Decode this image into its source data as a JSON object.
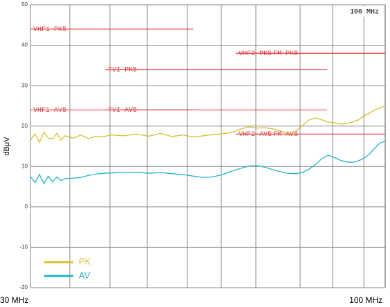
{
  "chart_data": {
    "type": "line",
    "y_label": "dBμV",
    "annotation": "100 MHz",
    "xscale": "log",
    "xlim": [
      30,
      108
    ],
    "xticks": [
      {
        "value": 30,
        "label": "30 MHz"
      },
      {
        "value": 100,
        "label": "100 MHz"
      }
    ],
    "ylim": [
      -20,
      50
    ],
    "yticks": [
      50,
      40,
      30,
      20,
      10,
      0,
      -10,
      -20
    ],
    "grid": true,
    "legend": "lower left",
    "x": [
      30,
      30.5,
      31,
      31.5,
      32,
      32.5,
      33,
      33.5,
      34,
      35,
      36,
      37,
      38,
      39,
      40,
      42,
      44,
      46,
      48,
      50,
      52,
      54,
      56,
      58,
      60,
      62,
      64,
      66,
      68,
      70,
      72,
      74,
      76,
      78,
      80,
      82,
      84,
      86,
      88,
      90,
      92,
      94,
      96,
      98,
      100,
      102,
      104,
      106,
      108
    ],
    "series": [
      {
        "name": "PK",
        "color": "#d9bd2c",
        "values": [
          16.5,
          18,
          16,
          18.5,
          17,
          16.8,
          18.2,
          16.5,
          17.6,
          17,
          17.8,
          16.9,
          17.5,
          17.3,
          17.8,
          17.6,
          18,
          17.5,
          18.2,
          17.4,
          17.8,
          17.3,
          17.6,
          17.9,
          18.1,
          18.4,
          19.2,
          19.8,
          19.5,
          19.6,
          19.3,
          18.8,
          18.2,
          18.6,
          20,
          21.5,
          22,
          21.5,
          21,
          20.8,
          20.5,
          20.6,
          21,
          21.5,
          22.5,
          23.2,
          24,
          24.5,
          25
        ]
      },
      {
        "name": "AV",
        "color": "#1fb3c9",
        "values": [
          7.5,
          6,
          8,
          5.8,
          7.6,
          6.2,
          7.4,
          6.5,
          7,
          7.1,
          7.3,
          7.8,
          8.1,
          8.3,
          8.4,
          8.5,
          8.6,
          8.3,
          8.5,
          8.2,
          8.0,
          7.6,
          7.3,
          7.4,
          8.0,
          8.8,
          9.5,
          10.1,
          10.2,
          9.8,
          9.2,
          8.7,
          8.3,
          8.2,
          8.5,
          9.3,
          10.5,
          12,
          12.8,
          12.2,
          11.5,
          11.1,
          11,
          11.4,
          12,
          13,
          14.5,
          15.8,
          16.3
        ]
      }
    ],
    "limit_color": "#e23a3a",
    "limits": [
      {
        "name": "VHF1-PK5",
        "level": 44,
        "start": 30,
        "end": 54
      },
      {
        "name": "VHF2-PK5",
        "level": 38,
        "start": 63,
        "end": 108
      },
      {
        "name": "FM-PK5",
        "level": 38,
        "start": 63,
        "end": 108
      },
      {
        "name": "TVI-PK5",
        "level": 34,
        "start": 39.3,
        "end": 87.6
      },
      {
        "name": "VHF1-AV5",
        "level": 24,
        "start": 30,
        "end": 54
      },
      {
        "name": "TVI-AV5",
        "level": 24,
        "start": 39.3,
        "end": 87.6
      },
      {
        "name": "VHF2-AV5",
        "level": 18,
        "start": 63,
        "end": 108
      },
      {
        "name": "FM-AV5",
        "level": 18,
        "start": 63,
        "end": 108
      }
    ]
  }
}
